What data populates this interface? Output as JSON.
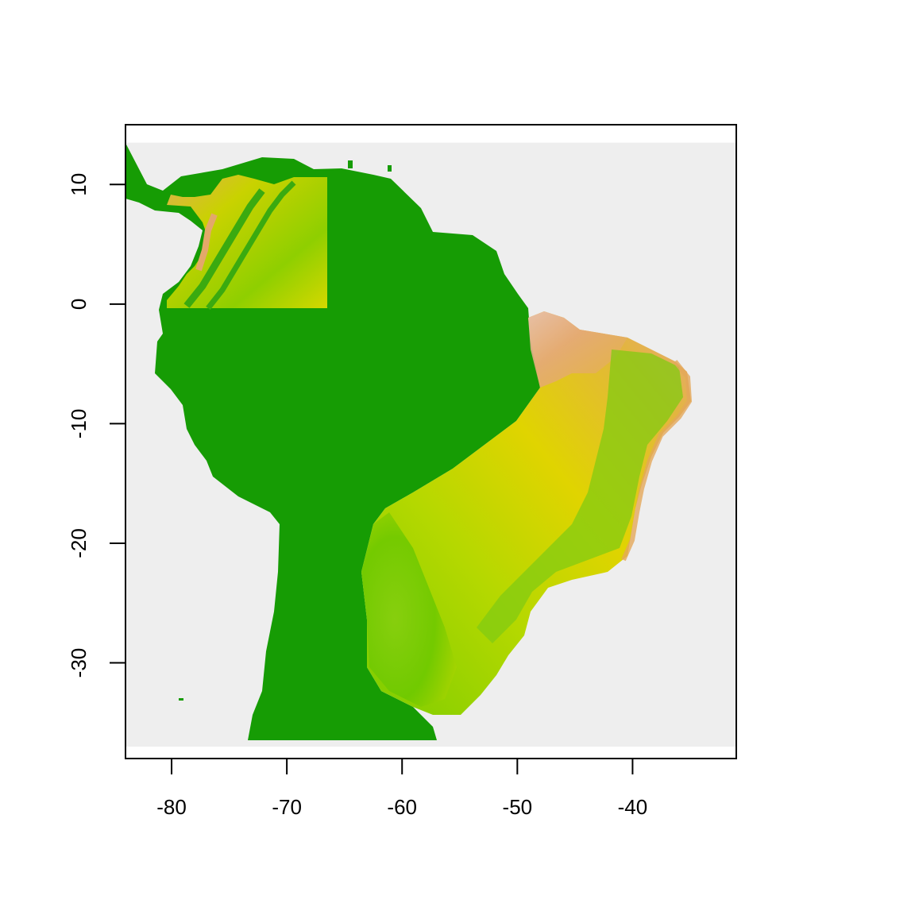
{
  "map": {
    "xlim": [
      -84,
      -31
    ],
    "ylim": [
      -38,
      15
    ],
    "x_ticks": [
      {
        "value": -80,
        "label": "-80"
      },
      {
        "value": -70,
        "label": "-70"
      },
      {
        "value": -60,
        "label": "-60"
      },
      {
        "value": -50,
        "label": "-50"
      },
      {
        "value": -40,
        "label": "-40"
      }
    ],
    "y_ticks": [
      {
        "value": 10,
        "label": "10"
      },
      {
        "value": 0,
        "label": "0"
      },
      {
        "value": -10,
        "label": "-10"
      },
      {
        "value": -20,
        "label": "-20"
      },
      {
        "value": -30,
        "label": "-30"
      }
    ],
    "raster_extent": {
      "xmin": -84,
      "xmax": -31,
      "ymin": -37,
      "ymax": 13.5
    },
    "colors": {
      "background_na": "#eeeeee",
      "land_base": "#169c04",
      "ramp_low": "#12a300",
      "ramp_mid_green": "#7ccd00",
      "ramp_yellow": "#e0e000",
      "ramp_orange": "#e3b53f",
      "ramp_salmon": "#e6a780",
      "ramp_high": "#f0f0f0"
    }
  }
}
